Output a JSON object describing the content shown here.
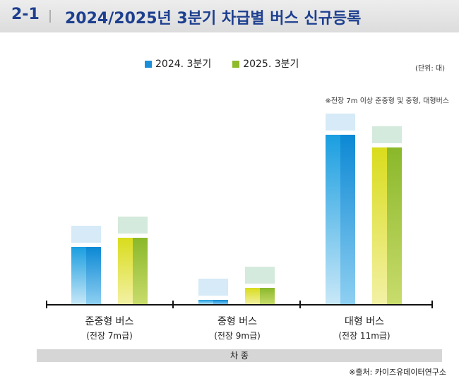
{
  "header": {
    "number": "2-1",
    "title": "2024/2025년 3분기 차급별 버스 신규등록"
  },
  "unit": "(단위: 대)",
  "note": "※전장 7m 이상 준중형 및 중형, 대형버스",
  "source": "※출처: 카이즈유데이터연구소",
  "chart_data": {
    "type": "bar",
    "title": "2024/2025년 3분기 차급별 버스 신규등록",
    "categories": [
      "준중형 버스",
      "중형 버스",
      "대형 버스"
    ],
    "category_sublabels": [
      "(전장 7m급)",
      "(전장 9m급)",
      "(전장 11m급)"
    ],
    "xlabel": "차 종",
    "ylabel": "",
    "unit": "대",
    "values_note": "no numeric labels visible; values are relative estimates from bar heights",
    "series": [
      {
        "name": "2024. 3분기",
        "color": "#1a8fd8",
        "values": [
          82,
          7,
          241
        ]
      },
      {
        "name": "2025. 3분기",
        "color": "#8fba2a",
        "values": [
          95,
          24,
          223
        ]
      }
    ],
    "ylim": [
      0,
      260
    ],
    "grid": false,
    "legend": "top-center"
  }
}
